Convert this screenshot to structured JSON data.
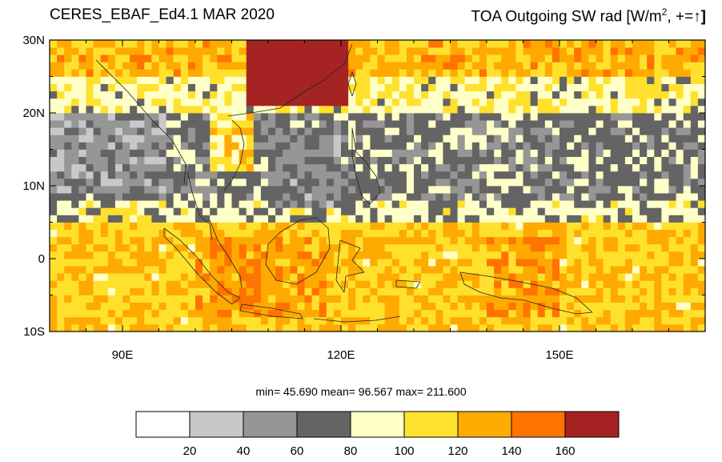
{
  "header": {
    "dataset_title": "CERES_EBAF_Ed4.1 MAR 2020",
    "variable_title_main": "TOA Outgoing SW rad [W/m",
    "variable_title_sup": "2",
    "variable_title_tail": ", +=",
    "variable_title_arrow": "↑",
    "variable_title_close": "]"
  },
  "stats_text": "min= 45.690  mean= 96.567  max= 211.600",
  "map": {
    "lon_range": [
      80,
      170
    ],
    "lat_range": [
      -10,
      30
    ],
    "lat_ticks": [
      {
        "value": 30,
        "label": "30N"
      },
      {
        "value": 20,
        "label": "20N"
      },
      {
        "value": 10,
        "label": "10N"
      },
      {
        "value": 0,
        "label": "0"
      },
      {
        "value": -10,
        "label": "10S"
      }
    ],
    "lon_ticks": [
      {
        "value": 90,
        "label": "90E"
      },
      {
        "value": 120,
        "label": "120E"
      },
      {
        "value": 150,
        "label": "150E"
      }
    ]
  },
  "colorbar": {
    "colors": [
      "#ffffff",
      "#c8c8c8",
      "#969696",
      "#646464",
      "#ffffc8",
      "#ffe12d",
      "#ffaa00",
      "#ff7300",
      "#a52323"
    ],
    "labels": [
      "20",
      "40",
      "60",
      "80",
      "100",
      "120",
      "140",
      "160"
    ]
  },
  "chart_data": {
    "type": "heatmap",
    "title": "CERES_EBAF_Ed4.1 MAR 2020",
    "variable": "TOA Outgoing SW rad [W/m2, +=↑]",
    "x_range": [
      80,
      170
    ],
    "y_range": [
      -10,
      30
    ],
    "levels": [
      20,
      40,
      60,
      80,
      100,
      120,
      140,
      160
    ],
    "level_colors": [
      "#ffffff",
      "#c8c8c8",
      "#969696",
      "#646464",
      "#ffffc8",
      "#ffe12d",
      "#ffaa00",
      "#ff7300",
      "#a52323"
    ],
    "statistics": {
      "min": 45.69,
      "mean": 96.567,
      "max": 211.6
    },
    "approximate_field_by_lat_band": [
      {
        "lat": "30N–25N",
        "dominant_range": "100–180"
      },
      {
        "lat": "25N–20N",
        "dominant_range": "60–100"
      },
      {
        "lat": "20N–8N",
        "dominant_range": "45–80"
      },
      {
        "lat": "8N–5N",
        "dominant_range": "60–100"
      },
      {
        "lat": "5N–10S",
        "dominant_range": "100–160"
      }
    ]
  }
}
